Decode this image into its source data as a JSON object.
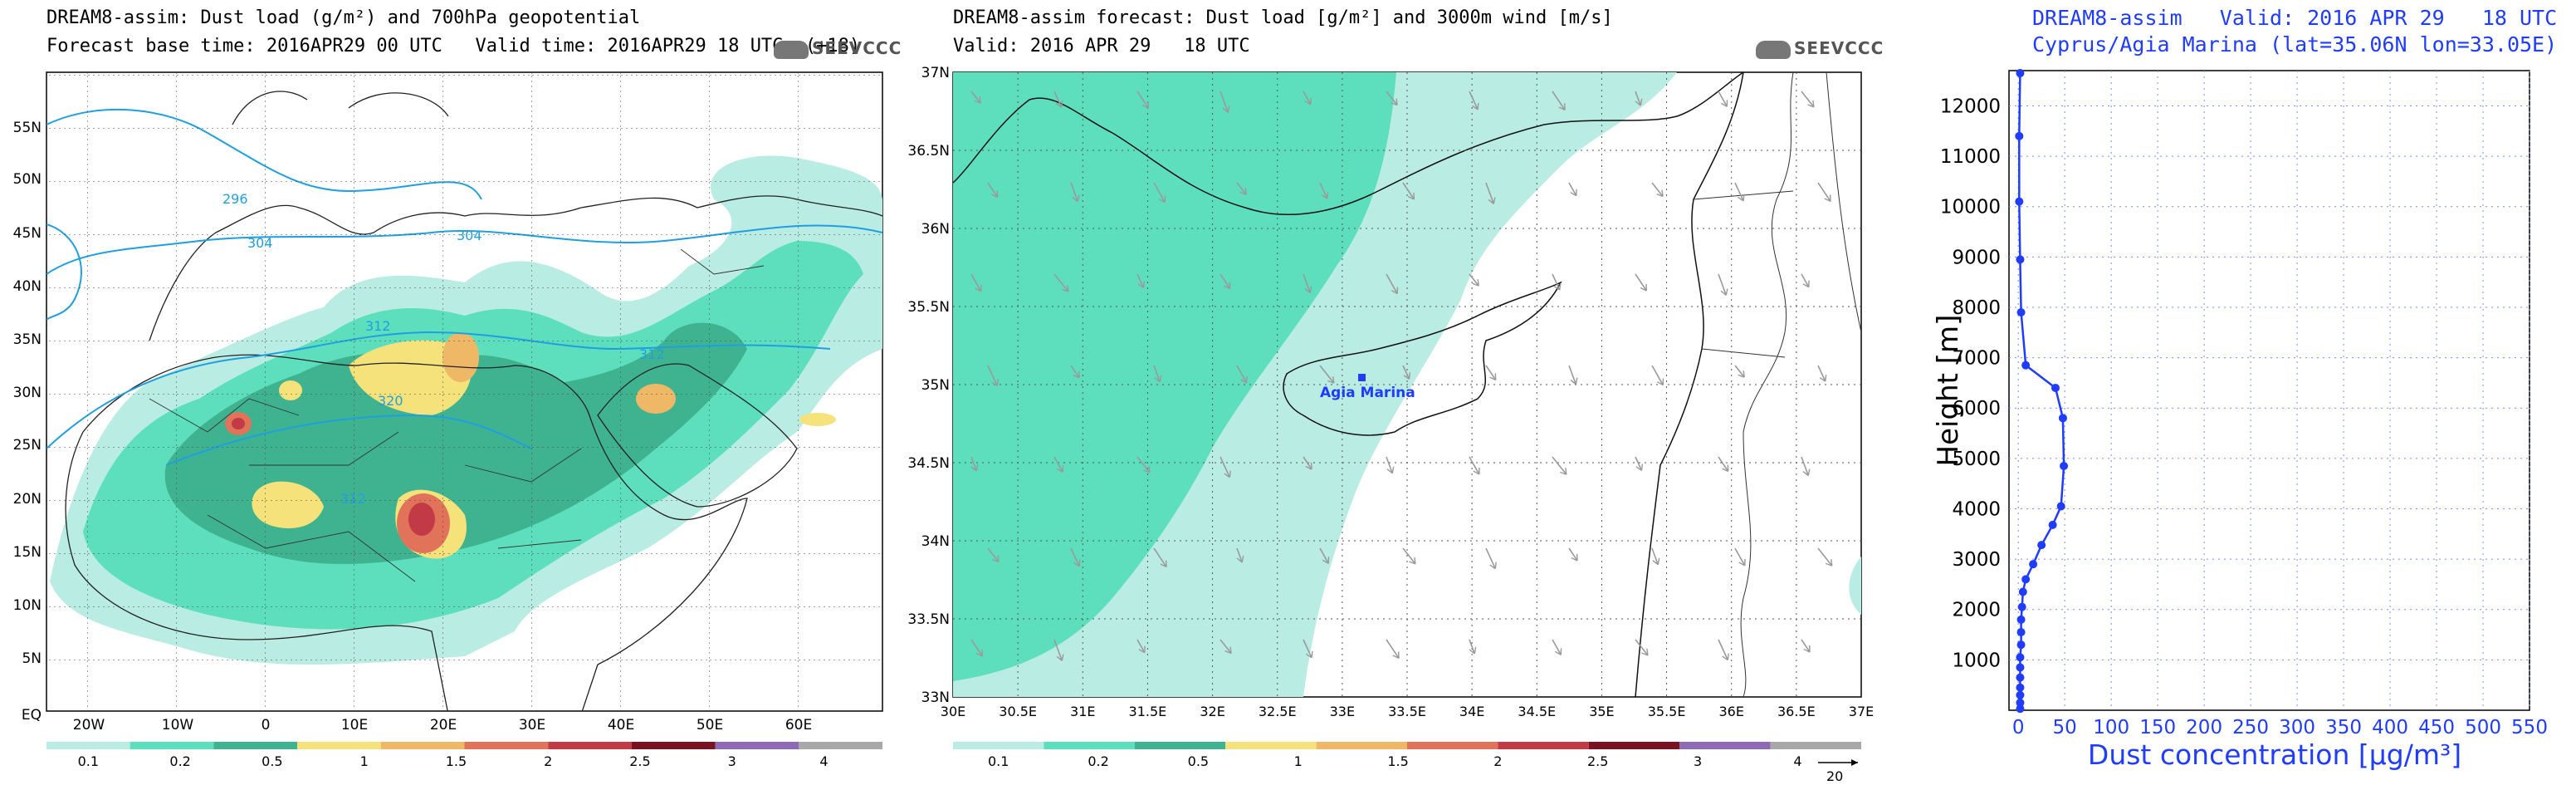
{
  "colors": {
    "scale": [
      "#d8f5f1",
      "#b9ece3",
      "#5ddfbe",
      "#3fb38f",
      "#f6e27a",
      "#efb867",
      "#e0735a",
      "#c23a45",
      "#7a1222",
      "#8d6ab3",
      "#a8a8a8"
    ],
    "contour": "#1f9fe0",
    "profile": "#1f3cff"
  },
  "panel1": {
    "title_line1": "DREAM8-assim: Dust load (g/m²) and 700hPa geopotential",
    "title_line2": "Forecast base time: 2016APR29 00 UTC   Valid time: 2016APR29 18 UTC  (+18)",
    "logo": "SEEVCCC",
    "lat_labels": [
      "55N",
      "50N",
      "45N",
      "40N",
      "35N",
      "30N",
      "25N",
      "20N",
      "15N",
      "10N",
      "5N",
      "EQ"
    ],
    "lon_labels": [
      "20W",
      "10W",
      "0",
      "10E",
      "20E",
      "30E",
      "40E",
      "50E",
      "60E"
    ],
    "contour_labels": [
      "296",
      "304",
      "304",
      "312",
      "312",
      "320",
      "312"
    ],
    "colorbar_labels": [
      "0.1",
      "0.2",
      "0.5",
      "1",
      "1.5",
      "2",
      "2.5",
      "3",
      "4"
    ]
  },
  "panel2": {
    "title_line1": "DREAM8-assim forecast: Dust load [g/m²] and 3000m wind [m/s]",
    "title_line2": "Valid: 2016 APR 29   18 UTC",
    "logo": "SEEVCCC",
    "lat_labels": [
      "37N",
      "36.5N",
      "36N",
      "35.5N",
      "35N",
      "34.5N",
      "34N",
      "33.5N",
      "33N"
    ],
    "lon_labels": [
      "30E",
      "30.5E",
      "31E",
      "31.5E",
      "32E",
      "32.5E",
      "33E",
      "33.5E",
      "34E",
      "34.5E",
      "35E",
      "35.5E",
      "36E",
      "36.5E",
      "37E"
    ],
    "station_label": "Agia Marina",
    "colorbar_labels": [
      "0.1",
      "0.2",
      "0.5",
      "1",
      "1.5",
      "2",
      "2.5",
      "3",
      "4"
    ],
    "wind_ref": "20"
  },
  "panel3": {
    "title_line1": "DREAM8-assim   Valid: 2016 APR 29   18 UTC",
    "title_line2": "Cyprus/Agia Marina (lat=35.06N lon=33.05E)"
  },
  "chart_data": [
    {
      "type": "heatmap",
      "title": "DREAM8-assim: Dust load (g/m²) and 700hPa geopotential",
      "subtitle": "Forecast base time: 2016APR29 00 UTC   Valid time: 2016APR29 18 UTC  (+18)",
      "x_ticks": [
        "20W",
        "10W",
        "0",
        "10E",
        "20E",
        "30E",
        "40E",
        "50E",
        "60E"
      ],
      "y_ticks": [
        "EQ",
        "5N",
        "10N",
        "15N",
        "20N",
        "25N",
        "30N",
        "35N",
        "40N",
        "45N",
        "50N",
        "55N"
      ],
      "legend_levels": [
        0.1,
        0.2,
        0.5,
        1,
        1.5,
        2,
        2.5,
        3,
        4
      ],
      "contour_levels": [
        296,
        304,
        312,
        320
      ]
    },
    {
      "type": "heatmap",
      "title": "DREAM8-assim forecast: Dust load [g/m²] and 3000m wind [m/s]",
      "subtitle": "Valid: 2016 APR 29   18 UTC",
      "xlim": [
        30,
        37
      ],
      "ylim": [
        33,
        37
      ],
      "legend_levels": [
        0.1,
        0.2,
        0.5,
        1,
        1.5,
        2,
        2.5,
        3,
        4
      ],
      "station": {
        "name": "Agia Marina",
        "lon": 33.05,
        "lat": 35.06
      }
    },
    {
      "type": "line",
      "title": "DREAM8-assim   Valid: 2016 APR 29   18 UTC",
      "subtitle": "Cyprus/Agia Marina (lat=35.06N lon=33.05E)",
      "xlabel": "Dust concentration [µg/m³]",
      "ylabel": "Height [m]",
      "xlim": [
        -10,
        550
      ],
      "ylim": [
        0,
        12700
      ],
      "x_ticks": [
        0,
        50,
        100,
        150,
        200,
        250,
        300,
        350,
        400,
        450,
        500,
        550
      ],
      "y_ticks": [
        1000,
        2000,
        3000,
        4000,
        5000,
        6000,
        7000,
        8000,
        9000,
        10000,
        11000,
        12000
      ],
      "series": [
        {
          "x": [
            2,
            2,
            2,
            2,
            2,
            2,
            2,
            3,
            3,
            3,
            4,
            5,
            8,
            16,
            25,
            37,
            46,
            49,
            48,
            40,
            8,
            3,
            2,
            1,
            1,
            2
          ],
          "y": [
            30,
            150,
            300,
            450,
            650,
            850,
            1050,
            1300,
            1550,
            1800,
            2050,
            2350,
            2600,
            2900,
            3280,
            3680,
            4050,
            4850,
            5800,
            6400,
            6850,
            7900,
            8950,
            10100,
            11400,
            12650
          ]
        }
      ]
    }
  ]
}
